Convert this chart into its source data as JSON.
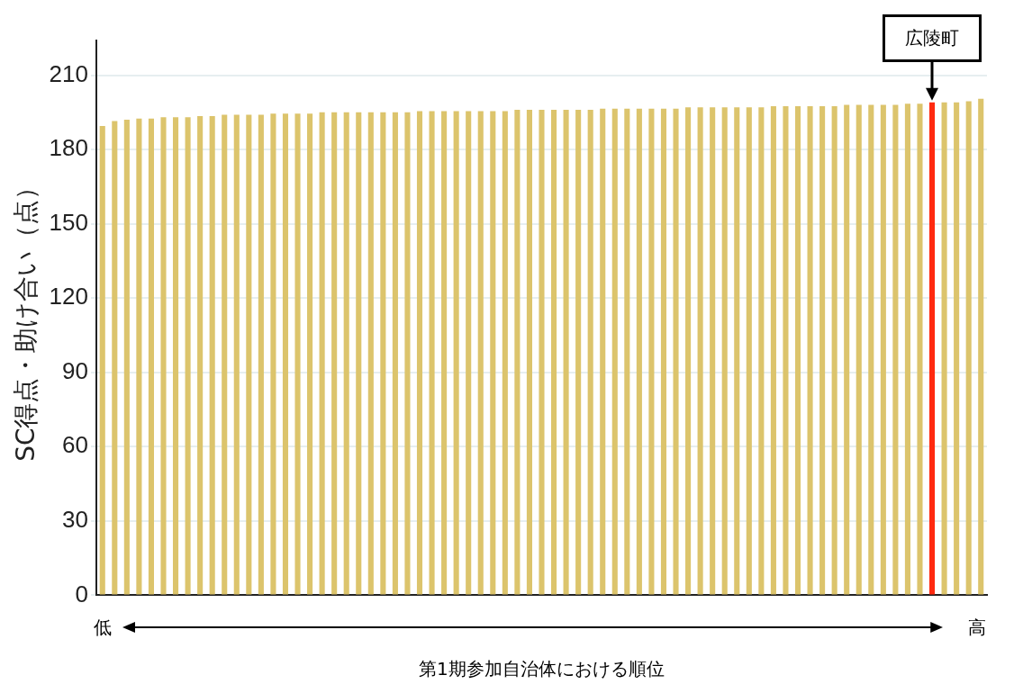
{
  "chart_data": {
    "type": "bar",
    "xlabel": "第1期参加自治体における順位",
    "ylabel": "SC得点・助け合い（点）",
    "categories": [
      null,
      null,
      null,
      null,
      null,
      null,
      null,
      null,
      null,
      null,
      null,
      null,
      null,
      null,
      null,
      null,
      null,
      null,
      null,
      null,
      null,
      null,
      null,
      null,
      null,
      null,
      null,
      null,
      null,
      null,
      null,
      null,
      null,
      null,
      null,
      null,
      null,
      null,
      null,
      null,
      null,
      null,
      null,
      null,
      null,
      null,
      null,
      null,
      null,
      null,
      null,
      null,
      null,
      null,
      null,
      null,
      null,
      null,
      null,
      null,
      null,
      null,
      null,
      null,
      null,
      null,
      null,
      null,
      null,
      null,
      null,
      null,
      null
    ],
    "values": [
      189.5,
      191.5,
      192,
      192.5,
      192.5,
      193,
      193,
      193,
      193.5,
      193.5,
      194,
      194,
      194,
      194,
      194.5,
      194.5,
      194.5,
      194.5,
      195,
      195,
      195,
      195,
      195,
      195,
      195,
      195,
      195.5,
      195.5,
      195.5,
      195.5,
      195.5,
      195.5,
      195.5,
      195.5,
      196,
      196,
      196,
      196,
      196,
      196,
      196,
      196.5,
      196.5,
      196.5,
      196.5,
      196.5,
      196.5,
      196.5,
      197,
      197,
      197,
      197,
      197,
      197,
      197,
      197.5,
      197.5,
      197.5,
      197.5,
      197.5,
      197.5,
      198,
      198,
      198,
      198,
      198,
      198.5,
      198.5,
      199,
      199,
      199,
      199.5,
      200.5
    ],
    "colors": [
      "#dcc46c",
      "#dcc46c",
      "#dcc46c",
      "#dcc46c",
      "#dcc46c",
      "#dcc46c",
      "#dcc46c",
      "#dcc46c",
      "#dcc46c",
      "#dcc46c",
      "#dcc46c",
      "#dcc46c",
      "#dcc46c",
      "#dcc46c",
      "#dcc46c",
      "#dcc46c",
      "#dcc46c",
      "#dcc46c",
      "#dcc46c",
      "#dcc46c",
      "#dcc46c",
      "#dcc46c",
      "#dcc46c",
      "#dcc46c",
      "#dcc46c",
      "#dcc46c",
      "#dcc46c",
      "#dcc46c",
      "#dcc46c",
      "#dcc46c",
      "#dcc46c",
      "#dcc46c",
      "#dcc46c",
      "#dcc46c",
      "#dcc46c",
      "#dcc46c",
      "#dcc46c",
      "#dcc46c",
      "#dcc46c",
      "#dcc46c",
      "#dcc46c",
      "#dcc46c",
      "#dcc46c",
      "#dcc46c",
      "#dcc46c",
      "#dcc46c",
      "#dcc46c",
      "#dcc46c",
      "#dcc46c",
      "#dcc46c",
      "#dcc46c",
      "#dcc46c",
      "#dcc46c",
      "#dcc46c",
      "#dcc46c",
      "#dcc46c",
      "#dcc46c",
      "#dcc46c",
      "#dcc46c",
      "#dcc46c",
      "#dcc46c",
      "#dcc46c",
      "#dcc46c",
      "#dcc46c",
      "#dcc46c",
      "#dcc46c",
      "#dcc46c",
      "#dcc46c",
      "#ff2a10",
      "#dcc46c",
      "#dcc46c",
      "#dcc46c",
      "#dcc46c"
    ],
    "ylim": [
      0,
      224
    ],
    "yticks": [
      0,
      30,
      60,
      90,
      120,
      150,
      180,
      210
    ],
    "grid": "y",
    "annotations": [
      "広陵町",
      "低",
      "高"
    ]
  }
}
